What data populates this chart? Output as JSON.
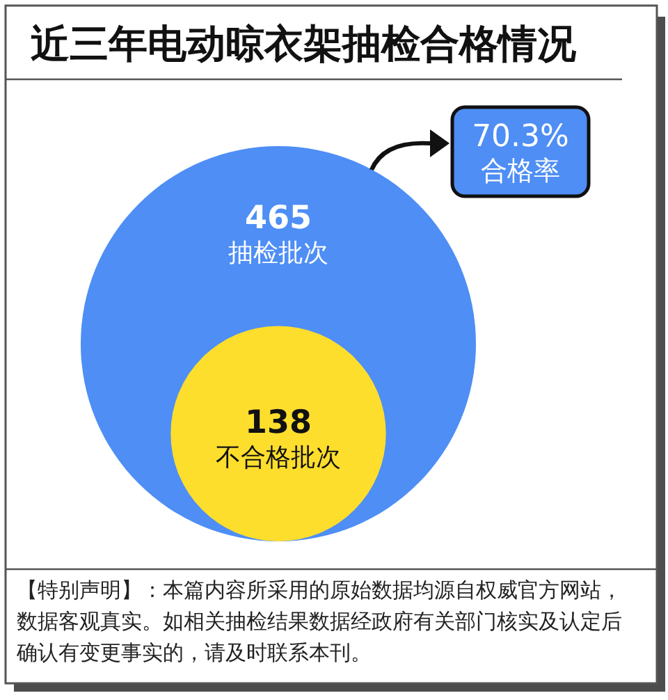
{
  "chart_data": {
    "type": "other",
    "title": "近三年电动晾衣架抽检合格情况",
    "categories": [
      "抽检批次",
      "不合格批次"
    ],
    "values": [
      465,
      138
    ],
    "colors": [
      "#4e8ef5",
      "#fdde2d"
    ],
    "data_labels": true,
    "annotations": [
      "70.3%",
      "合格率",
      "【特别声明】：本篇内容所采用的原始数据均源自权威官方网站，数据客观真实。如相关抽检结果数据经政府有关部门核实及认定后确认有变更事实的，请及时联系本刊。"
    ]
  }
}
